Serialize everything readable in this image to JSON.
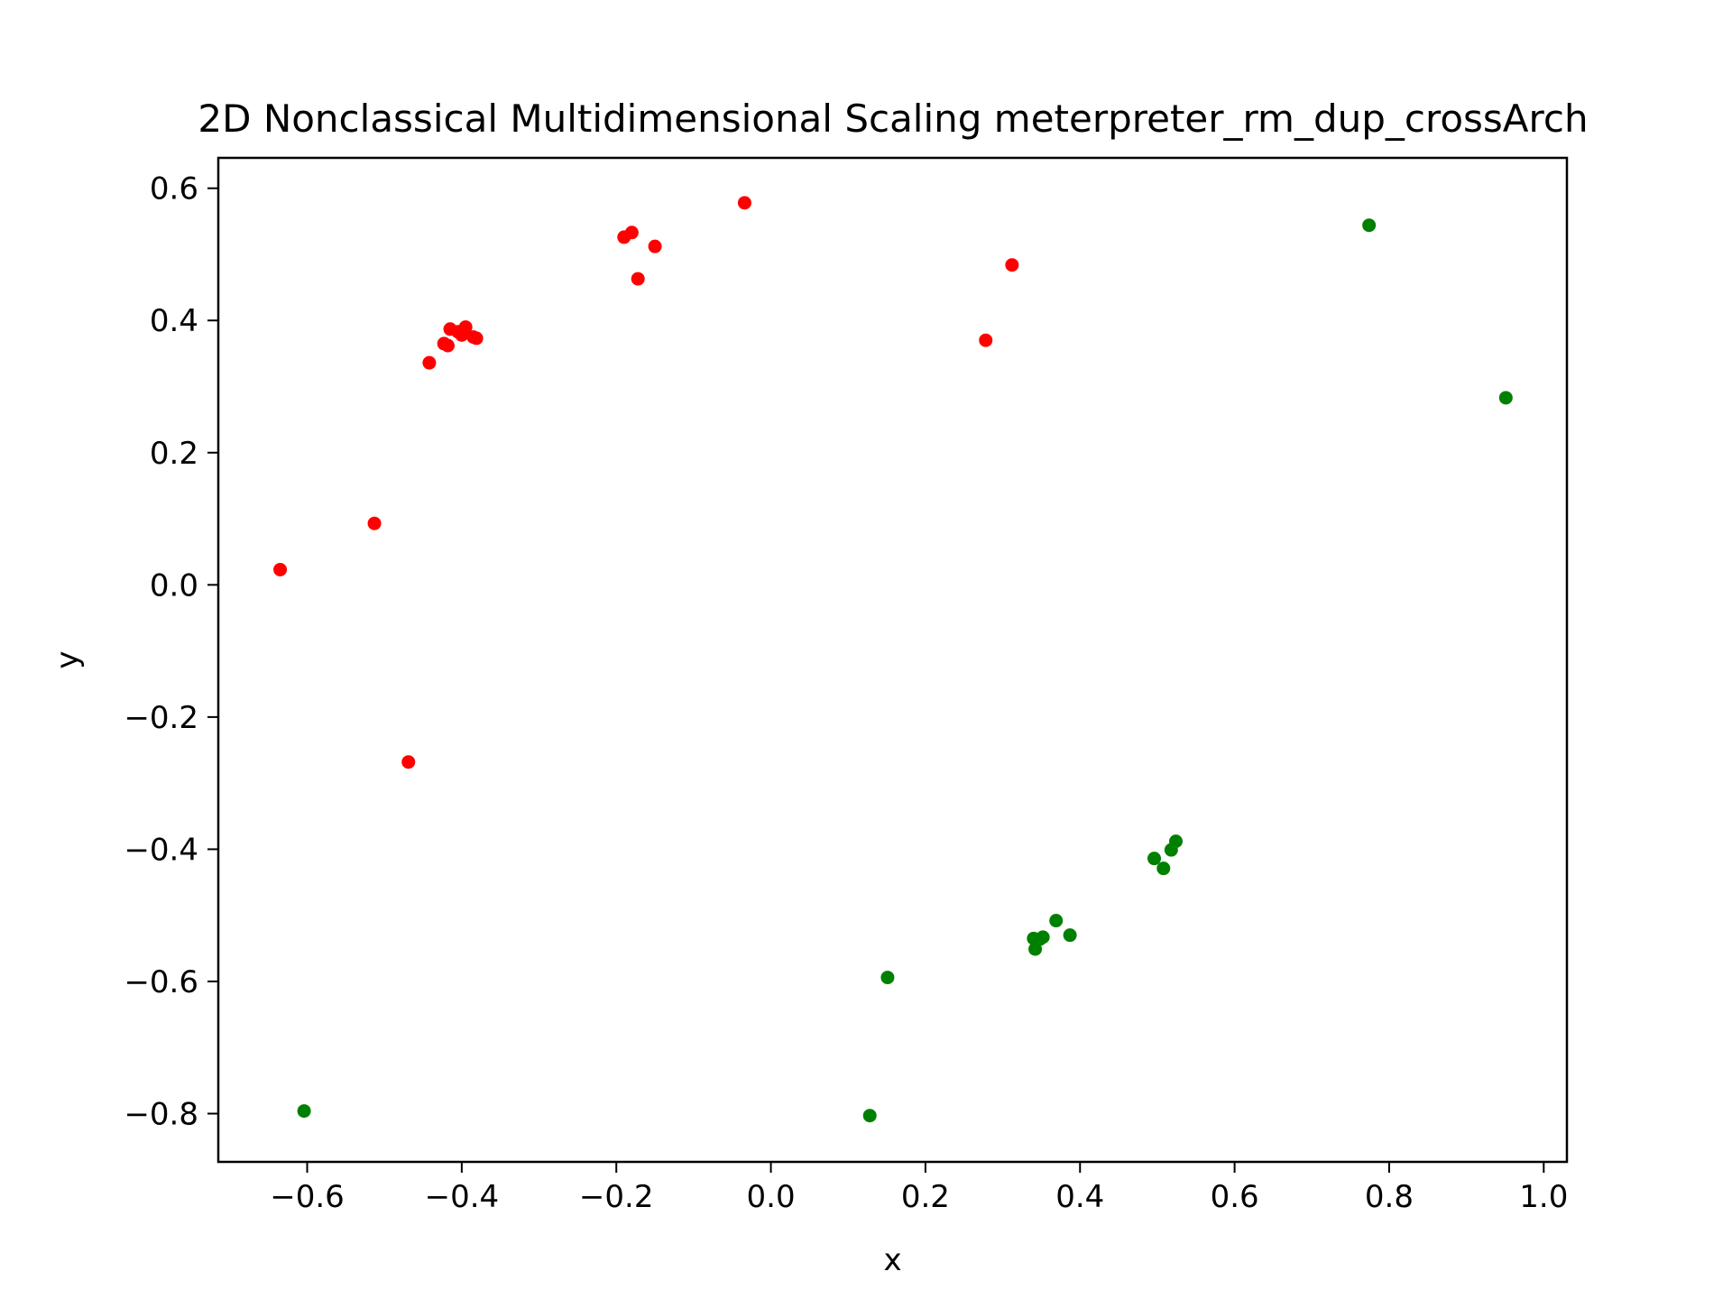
{
  "chart_data": {
    "type": "scatter",
    "title": "2D Nonclassical Multidimensional Scaling meterpreter_rm_dup_crossArch",
    "xlabel": "x",
    "ylabel": "y",
    "xlim": [
      -0.715,
      1.03
    ],
    "ylim": [
      -0.873,
      0.646
    ],
    "grid": false,
    "xticks": [
      -0.6,
      -0.4,
      -0.2,
      0.0,
      0.2,
      0.4,
      0.6,
      0.8,
      1.0
    ],
    "xtick_labels": [
      "−0.6",
      "−0.4",
      "−0.2",
      "0.0",
      "0.2",
      "0.4",
      "0.6",
      "0.8",
      "1.0"
    ],
    "yticks": [
      0.6,
      0.4,
      0.2,
      0.0,
      -0.2,
      -0.4,
      -0.6,
      -0.8
    ],
    "ytick_labels": [
      "0.6",
      "0.4",
      "0.2",
      "0.0",
      "−0.2",
      "−0.4",
      "−0.6",
      "−0.8"
    ],
    "series": [
      {
        "color": "#ff0000",
        "points": [
          [
            -0.635,
            0.023
          ],
          [
            -0.513,
            0.093
          ],
          [
            -0.469,
            -0.268
          ],
          [
            -0.442,
            0.336
          ],
          [
            -0.423,
            0.365
          ],
          [
            -0.418,
            0.362
          ],
          [
            -0.415,
            0.387
          ],
          [
            -0.405,
            0.383
          ],
          [
            -0.4,
            0.378
          ],
          [
            -0.395,
            0.39
          ],
          [
            -0.385,
            0.375
          ],
          [
            -0.381,
            0.373
          ],
          [
            -0.19,
            0.526
          ],
          [
            -0.18,
            0.533
          ],
          [
            -0.172,
            0.463
          ],
          [
            -0.15,
            0.512
          ],
          [
            -0.034,
            0.578
          ],
          [
            0.278,
            0.37
          ],
          [
            0.312,
            0.484
          ]
        ]
      },
      {
        "color": "#008000",
        "points": [
          [
            -0.604,
            -0.796
          ],
          [
            0.128,
            -0.803
          ],
          [
            0.151,
            -0.594
          ],
          [
            0.34,
            -0.535
          ],
          [
            0.342,
            -0.551
          ],
          [
            0.348,
            -0.536
          ],
          [
            0.352,
            -0.533
          ],
          [
            0.369,
            -0.508
          ],
          [
            0.387,
            -0.53
          ],
          [
            0.496,
            -0.414
          ],
          [
            0.508,
            -0.429
          ],
          [
            0.518,
            -0.401
          ],
          [
            0.524,
            -0.388
          ],
          [
            0.774,
            0.544
          ],
          [
            0.951,
            0.283
          ]
        ]
      }
    ]
  }
}
